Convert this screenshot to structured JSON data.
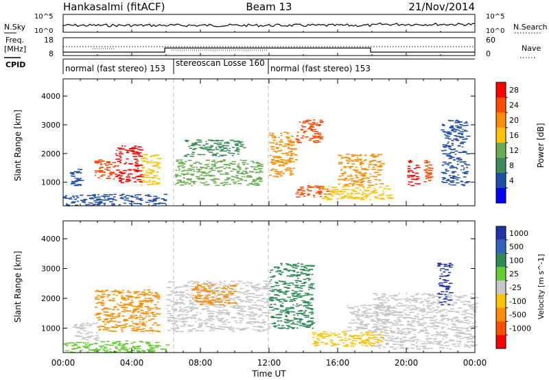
{
  "header": {
    "station": "Hankasalmi (fitACF)",
    "beam": "Beam 13",
    "date": "21/Nov/2014"
  },
  "noise_panel": {
    "left_label": "N.Sky",
    "right_label": "N.Search",
    "left_ticks": [
      "10^5",
      "10^0"
    ],
    "right_ticks": [
      "10^5",
      "10^0"
    ]
  },
  "freq_panel": {
    "left_label_1": "Freq.",
    "left_label_2": "[MHz]",
    "left_ticks": [
      "18",
      "8"
    ],
    "right_ticks": [
      "60",
      "0"
    ],
    "right_label": "Nave"
  },
  "cpid": {
    "label": "CPID",
    "segments": [
      {
        "text": "normal (fast stereo) 153",
        "start_h": 0.0
      },
      {
        "text": "stereoscan Losse 160",
        "start_h": 6.5
      },
      {
        "text": "normal (fast stereo) 153",
        "start_h": 12.0
      }
    ]
  },
  "x_axis": {
    "label": "Time UT",
    "ticks": [
      "00:00",
      "04:00",
      "08:00",
      "12:00",
      "16:00",
      "20:00",
      "00:00"
    ]
  },
  "power_colorbar": {
    "label": "Power [dB]",
    "ticks": [
      "28",
      "24",
      "20",
      "16",
      "12",
      "8",
      "4"
    ],
    "colors": [
      "#ff0000",
      "#ff4a00",
      "#ff8c00",
      "#ffc000",
      "#6aad50",
      "#3c8c5a",
      "#1f4ea8",
      "#0000ff"
    ]
  },
  "velocity_colorbar": {
    "label": "Velocity [m s^-1]",
    "ticks": [
      "1000",
      "500",
      "100",
      "25",
      "-25",
      "-100",
      "-500",
      "-1000"
    ],
    "colors": [
      "#2233aa",
      "#3366bb",
      "#2e8b57",
      "#66cc33",
      "#c8c8c8",
      "#ffc000",
      "#ff8c00",
      "#ff5000",
      "#ff0000"
    ]
  },
  "chart_data": [
    {
      "type": "heatmap",
      "title": "",
      "xlabel": "Time UT",
      "ylabel": "Slant Range [km]",
      "xlim": [
        0,
        24
      ],
      "ylim": [
        180,
        4600
      ],
      "yticks": [
        1000,
        2000,
        3000,
        4000
      ],
      "colorbar_label": "Power [dB]",
      "blobs": [
        {
          "t0": 0.0,
          "t1": 6.0,
          "r0": 200,
          "r1": 600,
          "level": "low",
          "color": "#1f4ea8"
        },
        {
          "t0": 0.3,
          "t1": 1.0,
          "r0": 900,
          "r1": 1500,
          "level": "low",
          "color": "#1f4ea8"
        },
        {
          "t0": 1.8,
          "t1": 3.0,
          "r0": 1100,
          "r1": 1800,
          "level": "high",
          "color": "#ff4a00"
        },
        {
          "t0": 3.0,
          "t1": 4.5,
          "r0": 1000,
          "r1": 2300,
          "level": "high",
          "color": "#ff0000"
        },
        {
          "t0": 4.5,
          "t1": 5.5,
          "r0": 900,
          "r1": 2000,
          "level": "medium",
          "color": "#ffc000"
        },
        {
          "t0": 6.5,
          "t1": 11.5,
          "r0": 900,
          "r1": 1800,
          "level": "medium",
          "color": "#6aad50"
        },
        {
          "t0": 7.0,
          "t1": 10.5,
          "r0": 1900,
          "r1": 2500,
          "level": "low",
          "color": "#3c8c5a"
        },
        {
          "t0": 12.0,
          "t1": 13.5,
          "r0": 1200,
          "r1": 2800,
          "level": "medium",
          "color": "#ff8c00"
        },
        {
          "t0": 13.5,
          "t1": 15.0,
          "r0": 2400,
          "r1": 3200,
          "level": "high",
          "color": "#ff4a00"
        },
        {
          "t0": 13.5,
          "t1": 15.5,
          "r0": 500,
          "r1": 900,
          "level": "high",
          "color": "#ff4a00"
        },
        {
          "t0": 15.0,
          "t1": 19.0,
          "r0": 400,
          "r1": 900,
          "level": "medium",
          "color": "#ffc000"
        },
        {
          "t0": 16.0,
          "t1": 18.5,
          "r0": 900,
          "r1": 2000,
          "level": "medium",
          "color": "#ff8c00"
        },
        {
          "t0": 20.0,
          "t1": 20.6,
          "r0": 900,
          "r1": 1800,
          "level": "high",
          "color": "#ff0000"
        },
        {
          "t0": 21.0,
          "t1": 21.4,
          "r0": 1000,
          "r1": 1800,
          "level": "high",
          "color": "#ff4a00"
        },
        {
          "t0": 22.0,
          "t1": 23.5,
          "r0": 900,
          "r1": 3200,
          "level": "low",
          "color": "#1f4ea8"
        }
      ]
    },
    {
      "type": "heatmap",
      "title": "",
      "xlabel": "Time UT",
      "ylabel": "Slant Range [km]",
      "xlim": [
        0,
        24
      ],
      "ylim": [
        180,
        4600
      ],
      "yticks": [
        1000,
        2000,
        3000,
        4000
      ],
      "colorbar_label": "Velocity [m s^-1]",
      "blobs": [
        {
          "t0": 0.0,
          "t1": 6.0,
          "r0": 200,
          "r1": 600,
          "level": "100",
          "color": "#66cc33"
        },
        {
          "t0": 1.8,
          "t1": 5.5,
          "r0": 900,
          "r1": 2300,
          "level": "-100",
          "color": "#ff8c00"
        },
        {
          "t0": 0.5,
          "t1": 2.0,
          "r0": 600,
          "r1": 1200,
          "level": "25",
          "color": "#c8c8c8"
        },
        {
          "t0": 6.0,
          "t1": 12.0,
          "r0": 900,
          "r1": 2600,
          "level": "25",
          "color": "#c8c8c8"
        },
        {
          "t0": 7.5,
          "t1": 10.0,
          "r0": 1800,
          "r1": 2500,
          "level": "-100",
          "color": "#ff8c00"
        },
        {
          "t0": 12.0,
          "t1": 14.5,
          "r0": 1000,
          "r1": 3200,
          "level": "100",
          "color": "#2e8b57"
        },
        {
          "t0": 14.5,
          "t1": 18.5,
          "r0": 400,
          "r1": 900,
          "level": "-100",
          "color": "#ffc000"
        },
        {
          "t0": 16.5,
          "t1": 19.0,
          "r0": 900,
          "r1": 1800,
          "level": "25",
          "color": "#c8c8c8"
        },
        {
          "t0": 18.0,
          "t1": 24.0,
          "r0": 300,
          "r1": 2200,
          "level": "25",
          "color": "#c8c8c8"
        },
        {
          "t0": 21.8,
          "t1": 22.5,
          "r0": 1800,
          "r1": 3200,
          "level": "500",
          "color": "#2233aa"
        }
      ]
    }
  ]
}
